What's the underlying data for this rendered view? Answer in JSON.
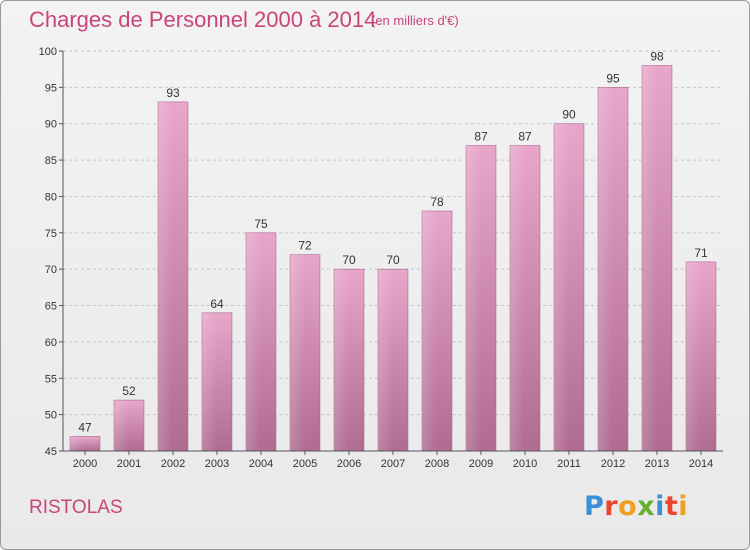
{
  "header": {
    "title": "Charges de Personnel 2000 à 2014",
    "subtitle": "(en milliers d'€)"
  },
  "footer": {
    "commune": "RISTOLAS",
    "logo_text": "Proxiti",
    "logo_colors": [
      "#3a8fd6",
      "#e8452c",
      "#f0a020",
      "#66b032",
      "#3a8fd6",
      "#e8452c",
      "#f0a020"
    ]
  },
  "colors": {
    "bar_light": "#e8a6cb",
    "bar_dark": "#b06b92",
    "title": "#c8457a"
  },
  "chart_data": {
    "type": "bar",
    "categories": [
      "2000",
      "2001",
      "2002",
      "2003",
      "2004",
      "2005",
      "2006",
      "2007",
      "2008",
      "2009",
      "2010",
      "2011",
      "2012",
      "2013",
      "2014"
    ],
    "values": [
      47,
      52,
      93,
      64,
      75,
      72,
      70,
      70,
      78,
      87,
      87,
      90,
      95,
      98,
      71
    ],
    "ylim": [
      45,
      100
    ],
    "yticks": [
      45,
      50,
      55,
      60,
      65,
      70,
      75,
      80,
      85,
      90,
      95,
      100
    ],
    "grid": true,
    "legend": "none"
  }
}
